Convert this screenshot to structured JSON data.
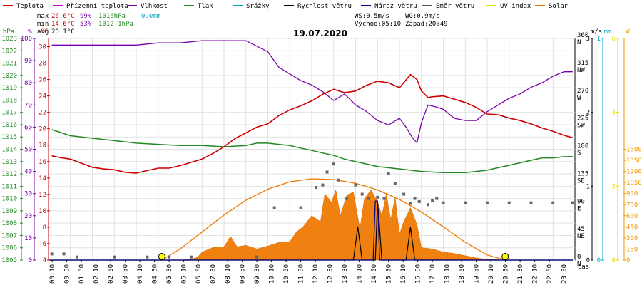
{
  "chart_data": {
    "type": "line",
    "title": "19.07.2020",
    "x_axis": {
      "label": "čas",
      "ticks": [
        "00:10",
        "00:50",
        "01:30",
        "02:10",
        "02:50",
        "03:30",
        "04:10",
        "04:50",
        "05:30",
        "06:10",
        "06:50",
        "07:30",
        "08:10",
        "08:50",
        "09:30",
        "10:10",
        "10:50",
        "11:30",
        "12:10",
        "12:50",
        "13:30",
        "14:10",
        "14:50",
        "15:30",
        "16:10",
        "16:50",
        "17:30",
        "18:10",
        "18:50",
        "19:30",
        "20:10",
        "20:50",
        "21:30",
        "22:10",
        "22:50",
        "23:30"
      ],
      "range_hours": [
        0,
        24
      ]
    },
    "legend": [
      {
        "name": "Teplota",
        "color": "#cc0000"
      },
      {
        "name": "Přízemní teplota",
        "color": "#cc00cc"
      },
      {
        "name": "Vlhkost",
        "color": "#7700aa"
      },
      {
        "name": "Tlak",
        "color": "#228822"
      },
      {
        "name": "Srážky",
        "color": "#00aacc"
      },
      {
        "name": "Rychlost větru",
        "color": "#000000"
      },
      {
        "name": "Náraz větru",
        "color": "#000088"
      },
      {
        "name": "Směr větru",
        "color": "#555555"
      },
      {
        "name": "UV index",
        "color": "#dddd00"
      },
      {
        "name": "Solar",
        "color": "#ee7700"
      }
    ],
    "stats": {
      "max_label": "max",
      "max_temp": "26.6°C",
      "max_hum": "99%",
      "max_press": "1016hPa",
      "rain": "0.0mm",
      "min_label": "min",
      "min_temp": "14.6°C",
      "min_hum": "53%",
      "min_press": "1012.1hPa",
      "avg_label": "avg",
      "avg_temp": "20.1°C"
    },
    "info": {
      "ws": "WS:0.5m/s",
      "wg": "WG:0.9m/s",
      "sunrise": "Východ:05:10",
      "sunset": "Západ:20:49"
    },
    "axes": {
      "pressure": {
        "unit": "hPa",
        "min": 1005,
        "max": 1023,
        "ticks": [
          1005,
          1006,
          1007,
          1008,
          1009,
          1010,
          1011,
          1012,
          1013,
          1014,
          1015,
          1016,
          1017,
          1018,
          1019,
          1020,
          1021,
          1022,
          1023
        ]
      },
      "humidity": {
        "unit": "%",
        "min": 0,
        "max": 100,
        "ticks": [
          0,
          10,
          20,
          30,
          40,
          50,
          60,
          70,
          80,
          90,
          100
        ]
      },
      "temperature": {
        "unit": "°C",
        "min": 4,
        "max": 31,
        "ticks": [
          4,
          6,
          8,
          10,
          12,
          14,
          16,
          18,
          20,
          22,
          24,
          26,
          28,
          30
        ]
      },
      "direction": {
        "unit": "",
        "min": 0,
        "max": 360,
        "ticks": [
          {
            "v": 0,
            "d": "0",
            "c": "N"
          },
          {
            "v": 45,
            "d": "45",
            "c": "NE"
          },
          {
            "v": 90,
            "d": "90",
            "c": "E"
          },
          {
            "v": 135,
            "d": "135",
            "c": "SE"
          },
          {
            "v": 180,
            "d": "180",
            "c": "S"
          },
          {
            "v": 225,
            "d": "225",
            "c": "SW"
          },
          {
            "v": 270,
            "d": "270",
            "c": "W"
          },
          {
            "v": 315,
            "d": "315",
            "c": "NW"
          },
          {
            "v": 360,
            "d": "360",
            "c": "N"
          }
        ]
      },
      "wind": {
        "unit": "m/s",
        "min": 0,
        "max": 3,
        "ticks": [
          0,
          1,
          2,
          3
        ]
      },
      "rain": {
        "unit": "mm",
        "min": 0,
        "max": 1,
        "ticks": [
          0,
          1
        ]
      },
      "uv": {
        "unit": "",
        "min": 0,
        "max": 6,
        "ticks": [
          0,
          2,
          4,
          6
        ]
      },
      "solar": {
        "unit": "W",
        "min": 0,
        "max": 3000,
        "ticks": [
          0,
          150,
          300,
          450,
          600,
          750,
          900,
          1050,
          1200,
          1350,
          1500
        ]
      }
    },
    "series": {
      "temperature": [
        [
          0.15,
          16.7
        ],
        [
          0.5,
          16.5
        ],
        [
          1,
          16.3
        ],
        [
          1.5,
          15.8
        ],
        [
          2,
          15.3
        ],
        [
          2.5,
          15.1
        ],
        [
          3,
          15
        ],
        [
          3.5,
          14.7
        ],
        [
          4,
          14.6
        ],
        [
          4.5,
          14.9
        ],
        [
          5,
          15.2
        ],
        [
          5.5,
          15.2
        ],
        [
          6,
          15.5
        ],
        [
          6.5,
          15.9
        ],
        [
          7,
          16.3
        ],
        [
          7.5,
          17
        ],
        [
          8,
          17.8
        ],
        [
          8.5,
          18.8
        ],
        [
          9,
          19.5
        ],
        [
          9.5,
          20.2
        ],
        [
          10,
          20.6
        ],
        [
          10.5,
          21.6
        ],
        [
          11,
          22.3
        ],
        [
          11.5,
          22.8
        ],
        [
          12,
          23.4
        ],
        [
          12.5,
          24.2
        ],
        [
          13,
          24.8
        ],
        [
          13.5,
          24.4
        ],
        [
          14,
          24.6
        ],
        [
          14.5,
          25.3
        ],
        [
          15,
          25.8
        ],
        [
          15.5,
          25.6
        ],
        [
          16,
          25
        ],
        [
          16.5,
          26.6
        ],
        [
          16.8,
          26
        ],
        [
          17,
          24.6
        ],
        [
          17.3,
          23.8
        ],
        [
          17.5,
          23.9
        ],
        [
          18,
          24
        ],
        [
          18.5,
          23.6
        ],
        [
          19,
          23.2
        ],
        [
          19.5,
          22.6
        ],
        [
          20,
          21.8
        ],
        [
          20.5,
          21.7
        ],
        [
          21,
          21.3
        ],
        [
          21.5,
          21
        ],
        [
          22,
          20.6
        ],
        [
          22.5,
          20.1
        ],
        [
          23,
          19.7
        ],
        [
          23.5,
          19.2
        ],
        [
          23.9,
          18.9
        ]
      ],
      "humidity": [
        [
          0.15,
          97
        ],
        [
          1,
          97
        ],
        [
          2,
          97
        ],
        [
          3,
          97
        ],
        [
          4,
          97
        ],
        [
          5,
          98
        ],
        [
          6,
          98
        ],
        [
          7,
          99
        ],
        [
          8,
          99
        ],
        [
          9,
          99
        ],
        [
          10,
          94
        ],
        [
          10.5,
          87
        ],
        [
          11,
          84
        ],
        [
          11.5,
          81
        ],
        [
          12,
          79
        ],
        [
          12.5,
          76
        ],
        [
          13,
          72
        ],
        [
          13.5,
          75
        ],
        [
          14,
          70
        ],
        [
          14.5,
          67
        ],
        [
          15,
          63
        ],
        [
          15.5,
          61
        ],
        [
          16,
          64
        ],
        [
          16.3,
          60
        ],
        [
          16.6,
          55
        ],
        [
          16.8,
          53
        ],
        [
          17,
          62
        ],
        [
          17.3,
          70
        ],
        [
          17.7,
          69
        ],
        [
          18,
          68
        ],
        [
          18.5,
          64
        ],
        [
          19,
          63
        ],
        [
          19.5,
          63
        ],
        [
          20,
          67
        ],
        [
          20.5,
          70
        ],
        [
          21,
          73
        ],
        [
          21.5,
          75
        ],
        [
          22,
          78
        ],
        [
          22.5,
          80
        ],
        [
          23,
          83
        ],
        [
          23.5,
          85
        ],
        [
          23.9,
          85
        ]
      ],
      "pressure": [
        [
          0.15,
          1015.6
        ],
        [
          1,
          1015.1
        ],
        [
          2,
          1014.9
        ],
        [
          3,
          1014.7
        ],
        [
          4,
          1014.5
        ],
        [
          5,
          1014.4
        ],
        [
          6,
          1014.3
        ],
        [
          7,
          1014.3
        ],
        [
          8,
          1014.2
        ],
        [
          9,
          1014.3
        ],
        [
          9.5,
          1014.5
        ],
        [
          10,
          1014.5
        ],
        [
          10.5,
          1014.4
        ],
        [
          11,
          1014.3
        ],
        [
          11.5,
          1014.1
        ],
        [
          12,
          1013.9
        ],
        [
          12.5,
          1013.7
        ],
        [
          13,
          1013.5
        ],
        [
          13.5,
          1013.2
        ],
        [
          14,
          1013
        ],
        [
          15,
          1012.6
        ],
        [
          16,
          1012.4
        ],
        [
          17,
          1012.2
        ],
        [
          18,
          1012.1
        ],
        [
          19,
          1012.1
        ],
        [
          20,
          1012.3
        ],
        [
          20.5,
          1012.5
        ],
        [
          21,
          1012.7
        ],
        [
          21.5,
          1012.9
        ],
        [
          22,
          1013.1
        ],
        [
          22.5,
          1013.3
        ],
        [
          23,
          1013.3
        ],
        [
          23.5,
          1013.4
        ],
        [
          23.9,
          1013.4
        ]
      ],
      "wind_direction": [
        [
          0.15,
          10
        ],
        [
          0.7,
          10
        ],
        [
          1.3,
          5
        ],
        [
          3,
          5
        ],
        [
          4.5,
          5
        ],
        [
          5.5,
          5
        ],
        [
          6.5,
          5
        ],
        [
          9.5,
          5
        ],
        [
          10.3,
          85
        ],
        [
          11.5,
          85
        ],
        [
          12.2,
          118
        ],
        [
          12.5,
          122
        ],
        [
          12.7,
          143
        ],
        [
          13,
          156
        ],
        [
          13.2,
          130
        ],
        [
          13.6,
          100
        ],
        [
          14,
          122
        ],
        [
          14.3,
          107
        ],
        [
          14.6,
          100
        ],
        [
          15,
          102
        ],
        [
          15.3,
          100
        ],
        [
          15.5,
          140
        ],
        [
          15.8,
          125
        ],
        [
          16.2,
          107
        ],
        [
          16.5,
          92
        ],
        [
          16.7,
          100
        ],
        [
          16.9,
          95
        ],
        [
          17.3,
          90
        ],
        [
          17.5,
          97
        ],
        [
          17.7,
          100
        ],
        [
          18,
          93
        ],
        [
          19,
          93
        ],
        [
          20,
          93
        ],
        [
          21,
          93
        ],
        [
          22,
          93
        ],
        [
          23,
          93
        ],
        [
          23.9,
          93
        ]
      ],
      "wind_speed": [
        [
          0,
          0
        ],
        [
          13.9,
          0
        ],
        [
          14.1,
          0.45
        ],
        [
          14.3,
          0
        ],
        [
          14.9,
          0
        ],
        [
          15,
          0.8
        ],
        [
          15.2,
          0
        ],
        [
          16.3,
          0
        ],
        [
          16.5,
          0.45
        ],
        [
          16.7,
          0
        ],
        [
          23.9,
          0
        ]
      ],
      "wind_gust": [
        [
          0,
          0
        ],
        [
          14.8,
          0
        ],
        [
          14.9,
          0.8
        ],
        [
          15.0,
          0.8
        ],
        [
          15.1,
          0
        ],
        [
          23.9,
          0
        ]
      ],
      "solar_radiation": [
        [
          5.17,
          0
        ],
        [
          6,
          0
        ],
        [
          6.5,
          10
        ],
        [
          6.8,
          40
        ],
        [
          7,
          110
        ],
        [
          7.5,
          170
        ],
        [
          8,
          180
        ],
        [
          8.3,
          320
        ],
        [
          8.6,
          180
        ],
        [
          9,
          200
        ],
        [
          9.5,
          150
        ],
        [
          10,
          190
        ],
        [
          10.5,
          240
        ],
        [
          11,
          250
        ],
        [
          11.3,
          380
        ],
        [
          11.6,
          450
        ],
        [
          12,
          600
        ],
        [
          12.4,
          520
        ],
        [
          12.6,
          900
        ],
        [
          12.9,
          780
        ],
        [
          13.1,
          950
        ],
        [
          13.3,
          600
        ],
        [
          13.6,
          880
        ],
        [
          13.9,
          920
        ],
        [
          14.2,
          420
        ],
        [
          14.4,
          830
        ],
        [
          14.7,
          950
        ],
        [
          15,
          790
        ],
        [
          15.2,
          600
        ],
        [
          15.4,
          900
        ],
        [
          15.6,
          550
        ],
        [
          15.8,
          850
        ],
        [
          16,
          350
        ],
        [
          16.2,
          520
        ],
        [
          16.5,
          710
        ],
        [
          16.8,
          480
        ],
        [
          17,
          170
        ],
        [
          17.5,
          150
        ],
        [
          18,
          110
        ],
        [
          18.5,
          90
        ],
        [
          19,
          60
        ],
        [
          19.5,
          30
        ],
        [
          20,
          10
        ],
        [
          20.82,
          0
        ]
      ],
      "solar_theoretical": [
        [
          5.17,
          0
        ],
        [
          6,
          150
        ],
        [
          7,
          380
        ],
        [
          8,
          610
        ],
        [
          9,
          810
        ],
        [
          10,
          960
        ],
        [
          11,
          1060
        ],
        [
          12,
          1100
        ],
        [
          13,
          1090
        ],
        [
          14,
          1040
        ],
        [
          15,
          950
        ],
        [
          16,
          820
        ],
        [
          17,
          650
        ],
        [
          18,
          450
        ],
        [
          19,
          240
        ],
        [
          20,
          70
        ],
        [
          20.82,
          0
        ]
      ],
      "sun_markers": [
        {
          "label": "Východ",
          "x": 5.17
        },
        {
          "label": "Západ",
          "x": 20.82
        }
      ]
    }
  }
}
